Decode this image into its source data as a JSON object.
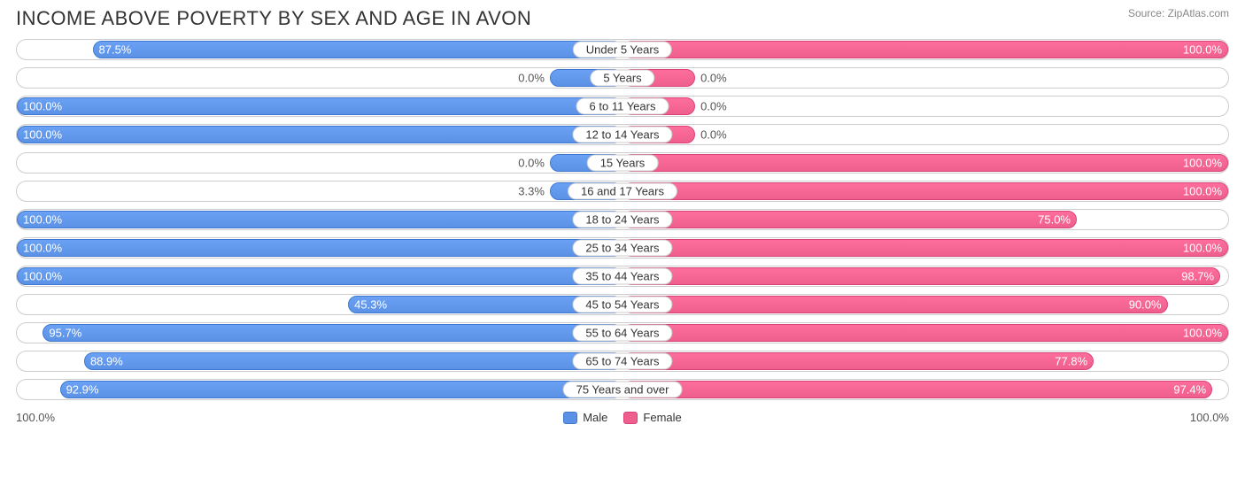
{
  "title": "INCOME ABOVE POVERTY BY SEX AND AGE IN AVON",
  "source": "Source: ZipAtlas.com",
  "axis": {
    "left": "100.0%",
    "right": "100.0%"
  },
  "legend": {
    "male": "Male",
    "female": "Female"
  },
  "colors": {
    "male_fill": "#5b92e5",
    "male_border": "#3f78cf",
    "female_fill": "#ef5f8e",
    "female_border": "#d9417a",
    "row_border": "#cccccc",
    "bg": "#ffffff",
    "text": "#333333",
    "muted": "#888888"
  },
  "chart": {
    "type": "diverging-bar",
    "x_max": 100.0,
    "min_visible_pct": 12,
    "label_inside_threshold": 20,
    "rows": [
      {
        "category": "Under 5 Years",
        "male": 87.5,
        "female": 100.0
      },
      {
        "category": "5 Years",
        "male": 0.0,
        "female": 0.0
      },
      {
        "category": "6 to 11 Years",
        "male": 100.0,
        "female": 0.0
      },
      {
        "category": "12 to 14 Years",
        "male": 100.0,
        "female": 0.0
      },
      {
        "category": "15 Years",
        "male": 0.0,
        "female": 100.0
      },
      {
        "category": "16 and 17 Years",
        "male": 3.3,
        "female": 100.0
      },
      {
        "category": "18 to 24 Years",
        "male": 100.0,
        "female": 75.0
      },
      {
        "category": "25 to 34 Years",
        "male": 100.0,
        "female": 100.0
      },
      {
        "category": "35 to 44 Years",
        "male": 100.0,
        "female": 98.7
      },
      {
        "category": "45 to 54 Years",
        "male": 45.3,
        "female": 90.0
      },
      {
        "category": "55 to 64 Years",
        "male": 95.7,
        "female": 100.0
      },
      {
        "category": "65 to 74 Years",
        "male": 88.9,
        "female": 77.8
      },
      {
        "category": "75 Years and over",
        "male": 92.9,
        "female": 97.4
      }
    ]
  }
}
